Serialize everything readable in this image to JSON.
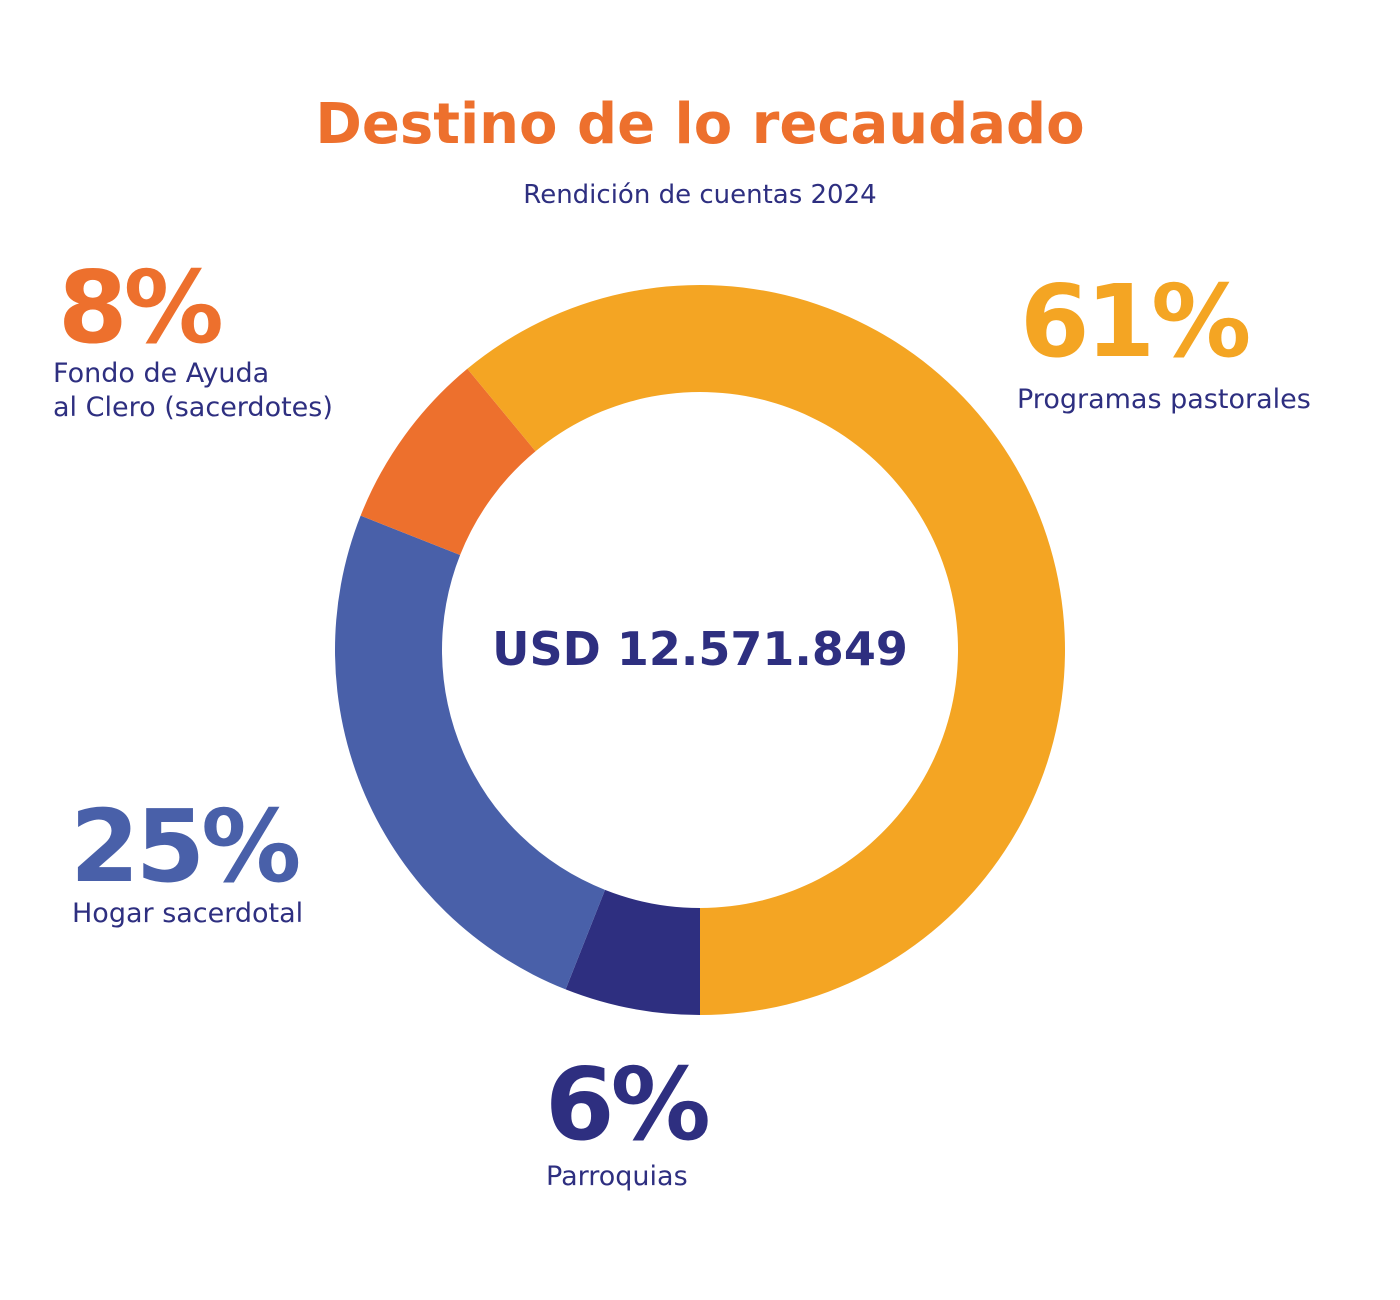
{
  "chart_data": {
    "type": "donut",
    "title": "Destino de lo recaudado",
    "subtitle": "Rendición de cuentas 2024",
    "center_label": "USD 12.571.849",
    "categories": [
      "Parroquias",
      "Hogar sacerdotal",
      "Fondo de Ayuda\nal Clero (sacerdotes)",
      "Programas pastorales"
    ],
    "values": [
      6,
      25,
      8,
      61
    ],
    "value_labels": [
      "6%",
      "25%",
      "8%",
      "61%"
    ],
    "colors": [
      "#2e2f80",
      "#4960a9",
      "#ed702d",
      "#f4a523"
    ]
  }
}
